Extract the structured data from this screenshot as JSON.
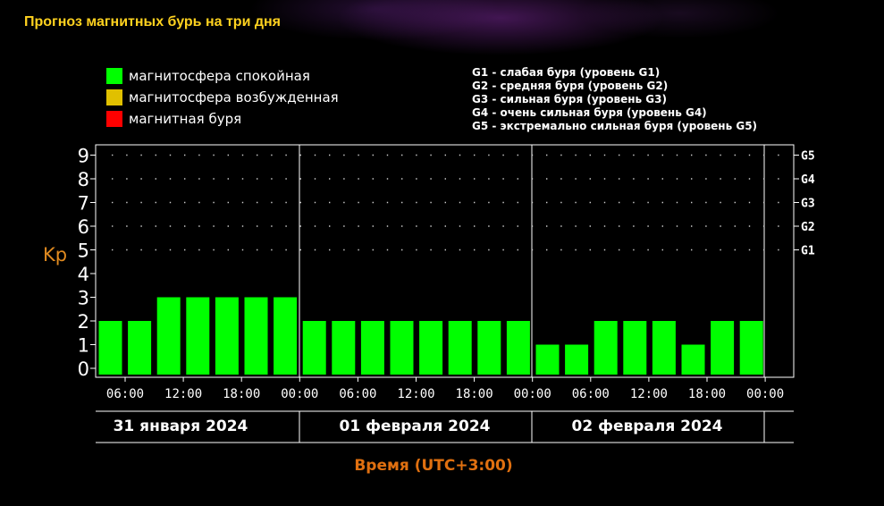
{
  "page_title": "Прогноз магнитных бурь на три дня",
  "colors": {
    "quiet": "#00ff00",
    "excited": "#e0c000",
    "storm": "#ff0000",
    "ylabel": "#e08a20",
    "xlabel": "#e07010",
    "title": "#ffd21f"
  },
  "legend": [
    {
      "label": "магнитосфера спокойная",
      "color": "#00ff00"
    },
    {
      "label": "магнитосфера возбужденная",
      "color": "#e0c000"
    },
    {
      "label": "магнитная буря",
      "color": "#ff0000"
    }
  ],
  "g_legend": [
    "G1 - слабая буря (уровень G1)",
    "G2 - средняя буря (уровень G2)",
    "G3 - сильная буря (уровень G3)",
    "G4 - очень сильная буря (уровень G4)",
    "G5 - экстремально сильная буря (уровень G5)"
  ],
  "chart_data": {
    "type": "bar",
    "ylabel": "Kp",
    "xlabel": "Время (UTC+3:00)",
    "ylim": [
      0,
      9
    ],
    "yticks": [
      "0",
      "1",
      "2",
      "3",
      "4",
      "5",
      "6",
      "7",
      "8",
      "9"
    ],
    "g_ticks": [
      {
        "kp": 5,
        "label": "G1"
      },
      {
        "kp": 6,
        "label": "G2"
      },
      {
        "kp": 7,
        "label": "G3"
      },
      {
        "kp": 8,
        "label": "G4"
      },
      {
        "kp": 9,
        "label": "G5"
      }
    ],
    "time_ticks": [
      "06:00",
      "12:00",
      "18:00",
      "00:00",
      "06:00",
      "12:00",
      "18:00",
      "00:00",
      "06:00",
      "12:00",
      "18:00",
      "00:00"
    ],
    "days": [
      "31 января 2024",
      "01 февраля 2024",
      "02 февраля 2024"
    ],
    "values": [
      2,
      2,
      3,
      3,
      3,
      3,
      3,
      2,
      2,
      2,
      2,
      2,
      2,
      2,
      2,
      1,
      1,
      2,
      2,
      2,
      1,
      2,
      2
    ],
    "grid": "dotted"
  }
}
